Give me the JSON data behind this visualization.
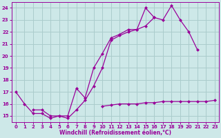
{
  "background_color": "#cde8e8",
  "grid_color": "#aacccc",
  "line_color": "#990099",
  "xlabel": "Windchill (Refroidissement éolien,°C)",
  "markersize": 2.5,
  "linewidth": 0.9,
  "ylim": [
    14.5,
    24.5
  ],
  "xlim": [
    -0.5,
    23.5
  ],
  "yticks": [
    15,
    16,
    17,
    18,
    19,
    20,
    21,
    22,
    23,
    24
  ],
  "xticks": [
    0,
    1,
    2,
    3,
    4,
    5,
    6,
    7,
    8,
    9,
    10,
    11,
    12,
    13,
    14,
    15,
    16,
    17,
    18,
    19,
    20,
    21,
    22,
    23
  ],
  "x": [
    0,
    1,
    2,
    3,
    4,
    5,
    6,
    7,
    8,
    9,
    10,
    11,
    12,
    13,
    14,
    15,
    16,
    17,
    18,
    19,
    20,
    21,
    22,
    23
  ],
  "lineA": [
    17.0,
    16.0,
    15.2,
    15.2,
    14.8,
    15.0,
    15.0,
    17.3,
    16.5,
    19.0,
    20.2,
    21.5,
    21.8,
    22.2,
    22.2,
    24.0,
    23.2,
    null,
    null,
    null,
    null,
    null,
    null,
    null
  ],
  "lineB": [
    null,
    null,
    15.5,
    15.5,
    15.0,
    15.0,
    14.8,
    15.5,
    16.3,
    17.5,
    19.0,
    21.3,
    21.7,
    22.0,
    22.2,
    22.5,
    23.2,
    23.0,
    24.2,
    23.0,
    22.0,
    20.5,
    null,
    null
  ],
  "lineC": [
    null,
    null,
    null,
    null,
    null,
    null,
    null,
    null,
    null,
    null,
    15.8,
    15.9,
    16.0,
    16.0,
    16.0,
    16.1,
    16.1,
    16.2,
    16.2,
    16.2,
    16.2,
    16.2,
    16.2,
    16.3
  ]
}
